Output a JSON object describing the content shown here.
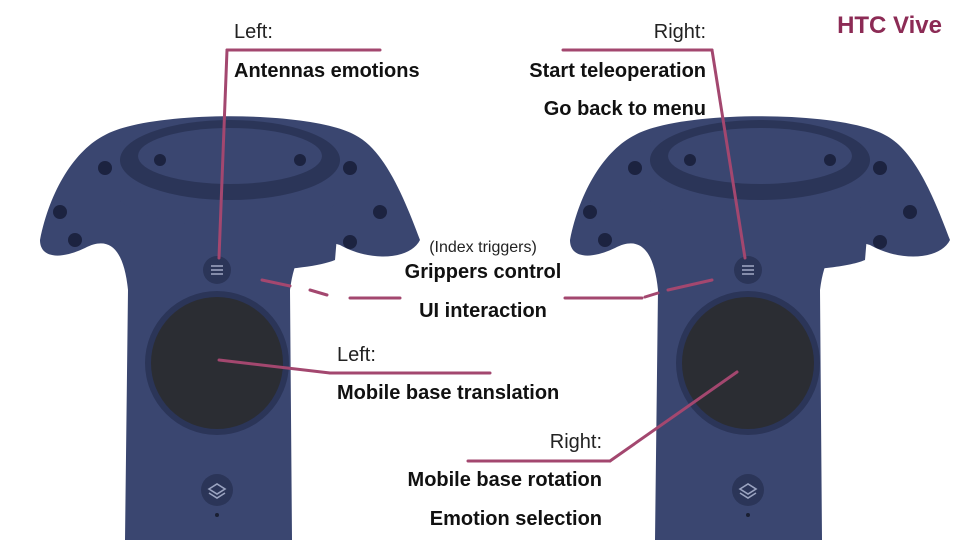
{
  "brand": {
    "title": "HTC Vive",
    "color": "#8c2b55"
  },
  "colors": {
    "line": "#a3476f",
    "controller_body": "#3a4670",
    "controller_dark": "#2b3558",
    "trackpad": "#2b2d33"
  },
  "icons": {
    "menu_button": "menu-icon",
    "system_button": "layers-icon"
  },
  "left_menu": {
    "side": "Left:",
    "action": "Antennas emotions"
  },
  "right_menu": {
    "side": "Right:",
    "actions": [
      "Start teleoperation",
      "Go back to menu"
    ]
  },
  "triggers": {
    "note": "(Index triggers)",
    "actions": [
      "Grippers control",
      "UI interaction"
    ]
  },
  "left_trackpad": {
    "side": "Left:",
    "action": "Mobile base translation"
  },
  "right_trackpad": {
    "side": "Right:",
    "actions": [
      "Mobile base rotation",
      "Emotion selection"
    ]
  }
}
